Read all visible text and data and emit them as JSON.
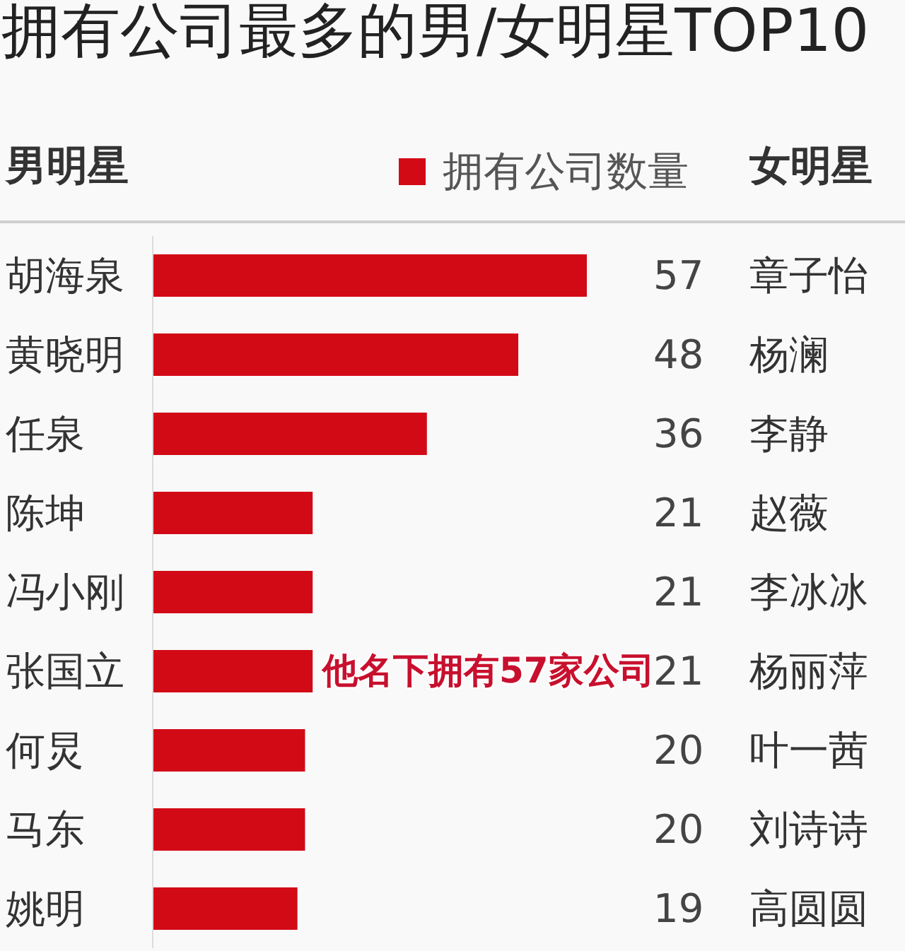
{
  "chart_data": {
    "type": "bar",
    "orientation": "horizontal",
    "title": "拥有公司最多的男/女明星TOP10",
    "ylabel": "男明星",
    "y2label": "女明星",
    "categories": [
      "胡海泉",
      "黄晓明",
      "任泉",
      "陈坤",
      "冯小刚",
      "张国立",
      "何炅",
      "马东",
      "姚明"
    ],
    "y2_categories": [
      "章子怡",
      "杨澜",
      "李静",
      "赵薇",
      "李冰冰",
      "杨丽萍",
      "叶一茜",
      "刘诗诗",
      "高圆圆"
    ],
    "series": [
      {
        "name": "拥有公司数量",
        "color": "#d20a16",
        "values": [
          57,
          48,
          36,
          21,
          21,
          21,
          20,
          20,
          19
        ]
      }
    ],
    "data_labels": true,
    "legend": "top",
    "annotations": [
      "他名下拥有57家公司"
    ]
  }
}
